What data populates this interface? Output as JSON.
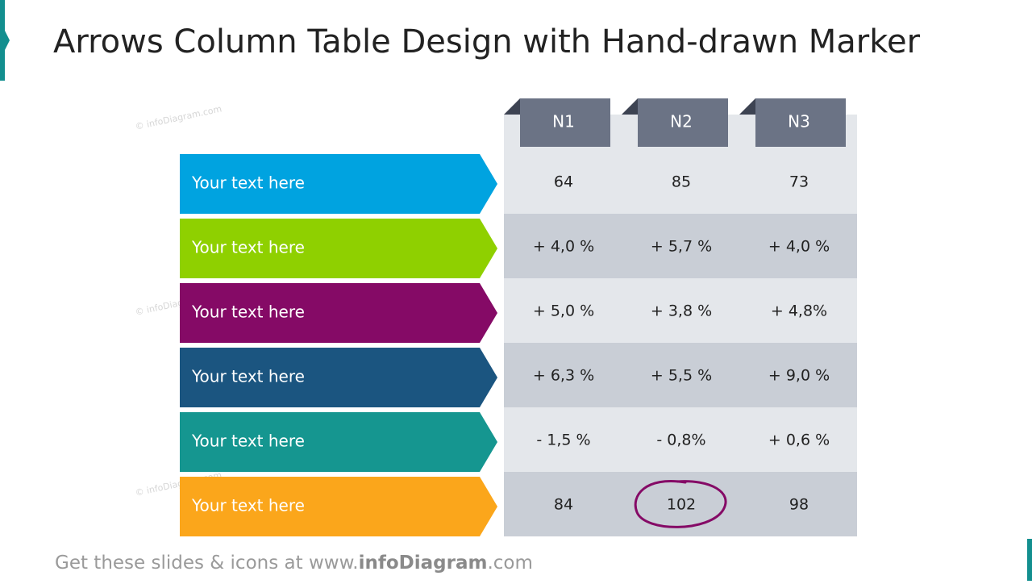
{
  "header": {
    "title": "Arrows Column Table Design with Hand-drawn Marker"
  },
  "watermark": "© infoDiagram.com",
  "table": {
    "columns": [
      "N1",
      "N2",
      "N3"
    ],
    "rows": [
      {
        "label": "Your text here",
        "color": "#00a3e0",
        "cells": [
          "64",
          "85",
          "73"
        ]
      },
      {
        "label": "Your text here",
        "color": "#8fd000",
        "cells": [
          "+ 4,0 %",
          "+ 5,7 %",
          "+ 4,0 %"
        ]
      },
      {
        "label": "Your text here",
        "color": "#850a66",
        "cells": [
          "+ 5,0 %",
          "+ 3,8 %",
          "+ 4,8%"
        ]
      },
      {
        "label": "Your text here",
        "color": "#1b5580",
        "cells": [
          "+ 6,3 %",
          "+ 5,5 %",
          "+ 9,0 %"
        ]
      },
      {
        "label": "Your text here",
        "color": "#159690",
        "cells": [
          "- 1,5 %",
          "- 0,8%",
          "+ 0,6 %"
        ]
      },
      {
        "label": "Your text here",
        "color": "#fba61b",
        "cells": [
          "84",
          "102",
          "98"
        ]
      }
    ]
  },
  "footer": {
    "prefix": "Get these slides & icons at www.",
    "brand": "infoDiagram",
    "suffix": ".com"
  }
}
